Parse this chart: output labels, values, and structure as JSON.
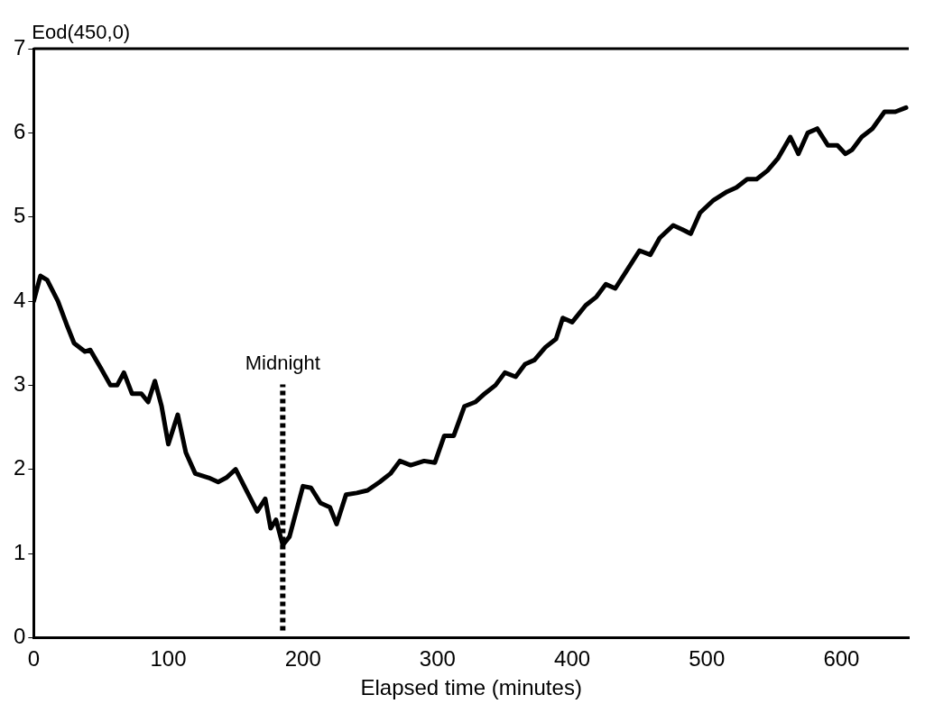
{
  "chart_data": {
    "type": "line",
    "ylabel": "Eod(450,0)",
    "xlabel": "Elapsed time (minutes)",
    "xlim": [
      0,
      650
    ],
    "ylim": [
      0,
      7
    ],
    "xticks": [
      0,
      100,
      200,
      300,
      400,
      500,
      600
    ],
    "yticks": [
      0,
      1,
      2,
      3,
      4,
      5,
      6,
      7
    ],
    "grid": false,
    "legend": false,
    "marker": "none",
    "line_style": "solid",
    "series": [
      {
        "color": "#000000",
        "x": [
          0,
          5,
          10,
          18,
          25,
          30,
          38,
          42,
          50,
          57,
          62,
          67,
          73,
          80,
          85,
          90,
          95,
          100,
          107,
          113,
          120,
          130,
          137,
          143,
          150,
          158,
          166,
          172,
          176,
          180,
          185,
          190,
          195,
          200,
          206,
          213,
          220,
          225,
          232,
          240,
          248,
          257,
          265,
          272,
          280,
          290,
          298,
          305,
          312,
          320,
          328,
          335,
          343,
          350,
          358,
          365,
          372,
          380,
          388,
          393,
          400,
          410,
          418,
          425,
          432,
          440,
          450,
          458,
          465,
          475,
          482,
          488,
          495,
          505,
          515,
          522,
          530,
          537,
          545,
          553,
          562,
          568,
          575,
          582,
          590,
          597,
          603,
          608,
          615,
          623,
          632,
          640,
          648
        ],
        "values": [
          4.0,
          4.3,
          4.25,
          4.0,
          3.7,
          3.5,
          3.4,
          3.42,
          3.2,
          3.0,
          3.0,
          3.15,
          2.9,
          2.9,
          2.8,
          3.05,
          2.75,
          2.3,
          2.65,
          2.2,
          1.95,
          1.9,
          1.85,
          1.9,
          2.0,
          1.75,
          1.5,
          1.65,
          1.3,
          1.4,
          1.1,
          1.2,
          1.5,
          1.8,
          1.78,
          1.6,
          1.55,
          1.35,
          1.7,
          1.72,
          1.75,
          1.85,
          1.95,
          2.1,
          2.05,
          2.1,
          2.08,
          2.4,
          2.4,
          2.75,
          2.8,
          2.9,
          3.0,
          3.15,
          3.1,
          3.25,
          3.3,
          3.45,
          3.55,
          3.8,
          3.75,
          3.95,
          4.05,
          4.2,
          4.15,
          4.35,
          4.6,
          4.55,
          4.75,
          4.9,
          4.85,
          4.8,
          5.05,
          5.2,
          5.3,
          5.35,
          5.45,
          5.45,
          5.55,
          5.7,
          5.95,
          5.75,
          6.0,
          6.05,
          5.85,
          5.85,
          5.75,
          5.8,
          5.95,
          6.05,
          6.25,
          6.25,
          6.3
        ]
      }
    ],
    "ref_lines": [
      {
        "axis": "x",
        "value": 185,
        "label": "Midnight",
        "line_style": "dotted",
        "color": "#000000"
      }
    ]
  }
}
